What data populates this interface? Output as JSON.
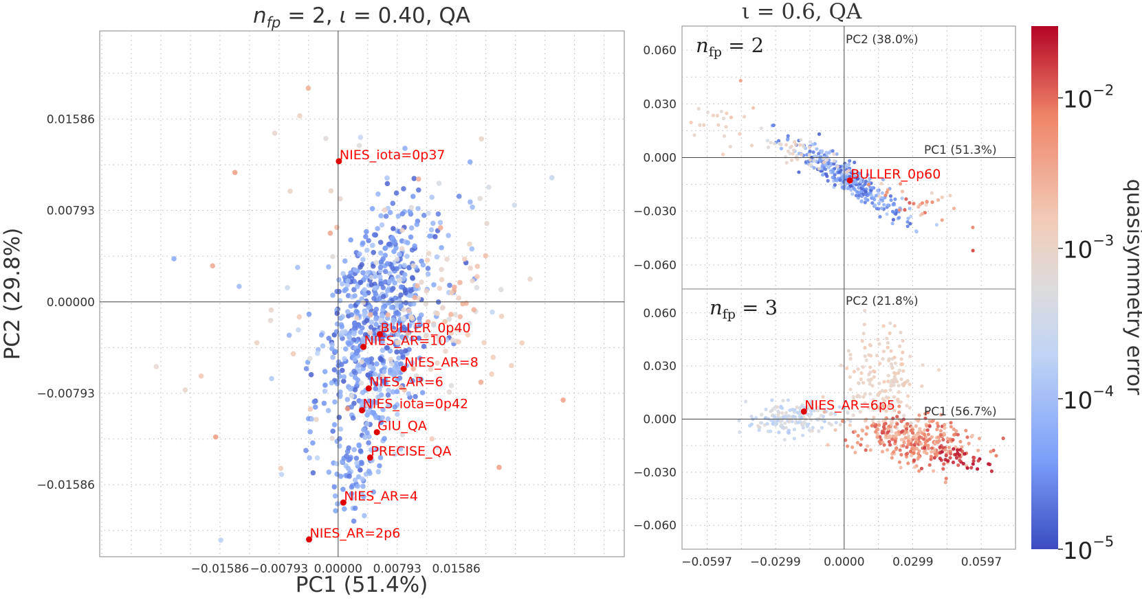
{
  "chart_data": [
    {
      "type": "scatter",
      "title": "n_fp = 2, ι = 0.40, QA",
      "title_parts": {
        "var": "n",
        "sub": "fp",
        "eq": " = 2, ",
        "iota": "ι",
        "rest": " = 0.40, QA"
      },
      "xlabel": "PC1 (51.4%)",
      "ylabel": "PC2 (29.8%)",
      "xlim": [
        -0.032,
        0.0384
      ],
      "ylim": [
        -0.0221,
        0.0235
      ],
      "xticks": [
        -0.01586,
        -0.00793,
        0.0,
        0.00793,
        0.01586
      ],
      "yticks": [
        -0.01586,
        -0.00793,
        0.0,
        0.00793,
        0.01586
      ],
      "xtick_labels": [
        "−0.01586",
        "−0.00793",
        "0.00000",
        "0.00793",
        "0.01586"
      ],
      "ytick_labels": [
        "−0.01586",
        "−0.00793",
        "0.00000",
        "0.00793",
        "0.01586"
      ],
      "grid": "dotted",
      "colormap": "coolwarm (log quasisymmetry error)",
      "labeled_points": [
        {
          "label": "NIES_iota=0p37",
          "x": 0.0001,
          "y": 0.0122
        },
        {
          "label": "BULLER_0p40",
          "x": 0.0056,
          "y": -0.0028
        },
        {
          "label": "NIES_AR=10",
          "x": 0.0034,
          "y": -0.0039
        },
        {
          "label": "NIES_AR=8",
          "x": 0.0088,
          "y": -0.0058
        },
        {
          "label": "NIES_AR=6",
          "x": 0.0041,
          "y": -0.0075
        },
        {
          "label": "NIES_iota=0p42",
          "x": 0.0032,
          "y": -0.0094
        },
        {
          "label": "GIU_QA",
          "x": 0.0052,
          "y": -0.0113
        },
        {
          "label": "PRECISE_QA",
          "x": 0.0043,
          "y": -0.0135
        },
        {
          "label": "NIES_AR=4",
          "x": 0.0007,
          "y": -0.0174
        },
        {
          "label": "NIES_AR=2p6",
          "x": -0.0039,
          "y": -0.0206
        }
      ]
    },
    {
      "type": "scatter",
      "title": "ι = 0.6, QA",
      "subplots": [
        {
          "annotation": "n_fp = 2",
          "pc1_label": "PC1 (51.3%)",
          "pc2_label": "PC2 (38.0%)",
          "xlim": [
            -0.0705,
            0.0745
          ],
          "ylim": [
            -0.0735,
            0.0735
          ],
          "yticks": [
            0.06,
            0.03,
            0.0,
            -0.03,
            -0.06
          ],
          "ytick_labels": [
            "0.060",
            "0.030",
            "0.000",
            "−0.030",
            "−0.060"
          ],
          "labeled_points": [
            {
              "label": "BULLER_0p60",
              "x": 0.0025,
              "y": -0.0128
            }
          ]
        },
        {
          "annotation": "n_fp = 3",
          "pc1_label": "PC1 (56.7%)",
          "pc2_label": "PC2 (21.8%)",
          "xlim": [
            -0.0705,
            0.0745
          ],
          "ylim": [
            -0.0735,
            0.0735
          ],
          "yticks": [
            0.06,
            0.03,
            0.0,
            -0.03,
            -0.06
          ],
          "ytick_labels": [
            "0.060",
            "0.030",
            "0.000",
            "−0.030",
            "−0.060"
          ],
          "xticks": [
            -0.0597,
            -0.0299,
            0.0,
            0.0299,
            0.0597
          ],
          "xtick_labels": [
            "−0.0597",
            "−0.0299",
            "0.0000",
            "0.0299",
            "0.0597"
          ],
          "labeled_points": [
            {
              "label": "NIES_AR=6p5",
              "x": -0.0175,
              "y": 0.0043
            }
          ]
        }
      ]
    },
    {
      "type": "colorbar",
      "label": "quasisymmetry error",
      "scale": "log",
      "range": [
        1e-05,
        0.03
      ],
      "ticks": [
        {
          "base": "10",
          "exp": "−2",
          "value": 0.01
        },
        {
          "base": "10",
          "exp": "−3",
          "value": 0.001
        },
        {
          "base": "10",
          "exp": "−4",
          "value": 0.0001
        },
        {
          "base": "10",
          "exp": "−5",
          "value": 1e-05
        }
      ],
      "colors": [
        "#3b4cc0",
        "#7b9ff9",
        "#c0d4f5",
        "#dddcdc",
        "#f2cbb7",
        "#ee8468",
        "#b40426"
      ]
    }
  ]
}
